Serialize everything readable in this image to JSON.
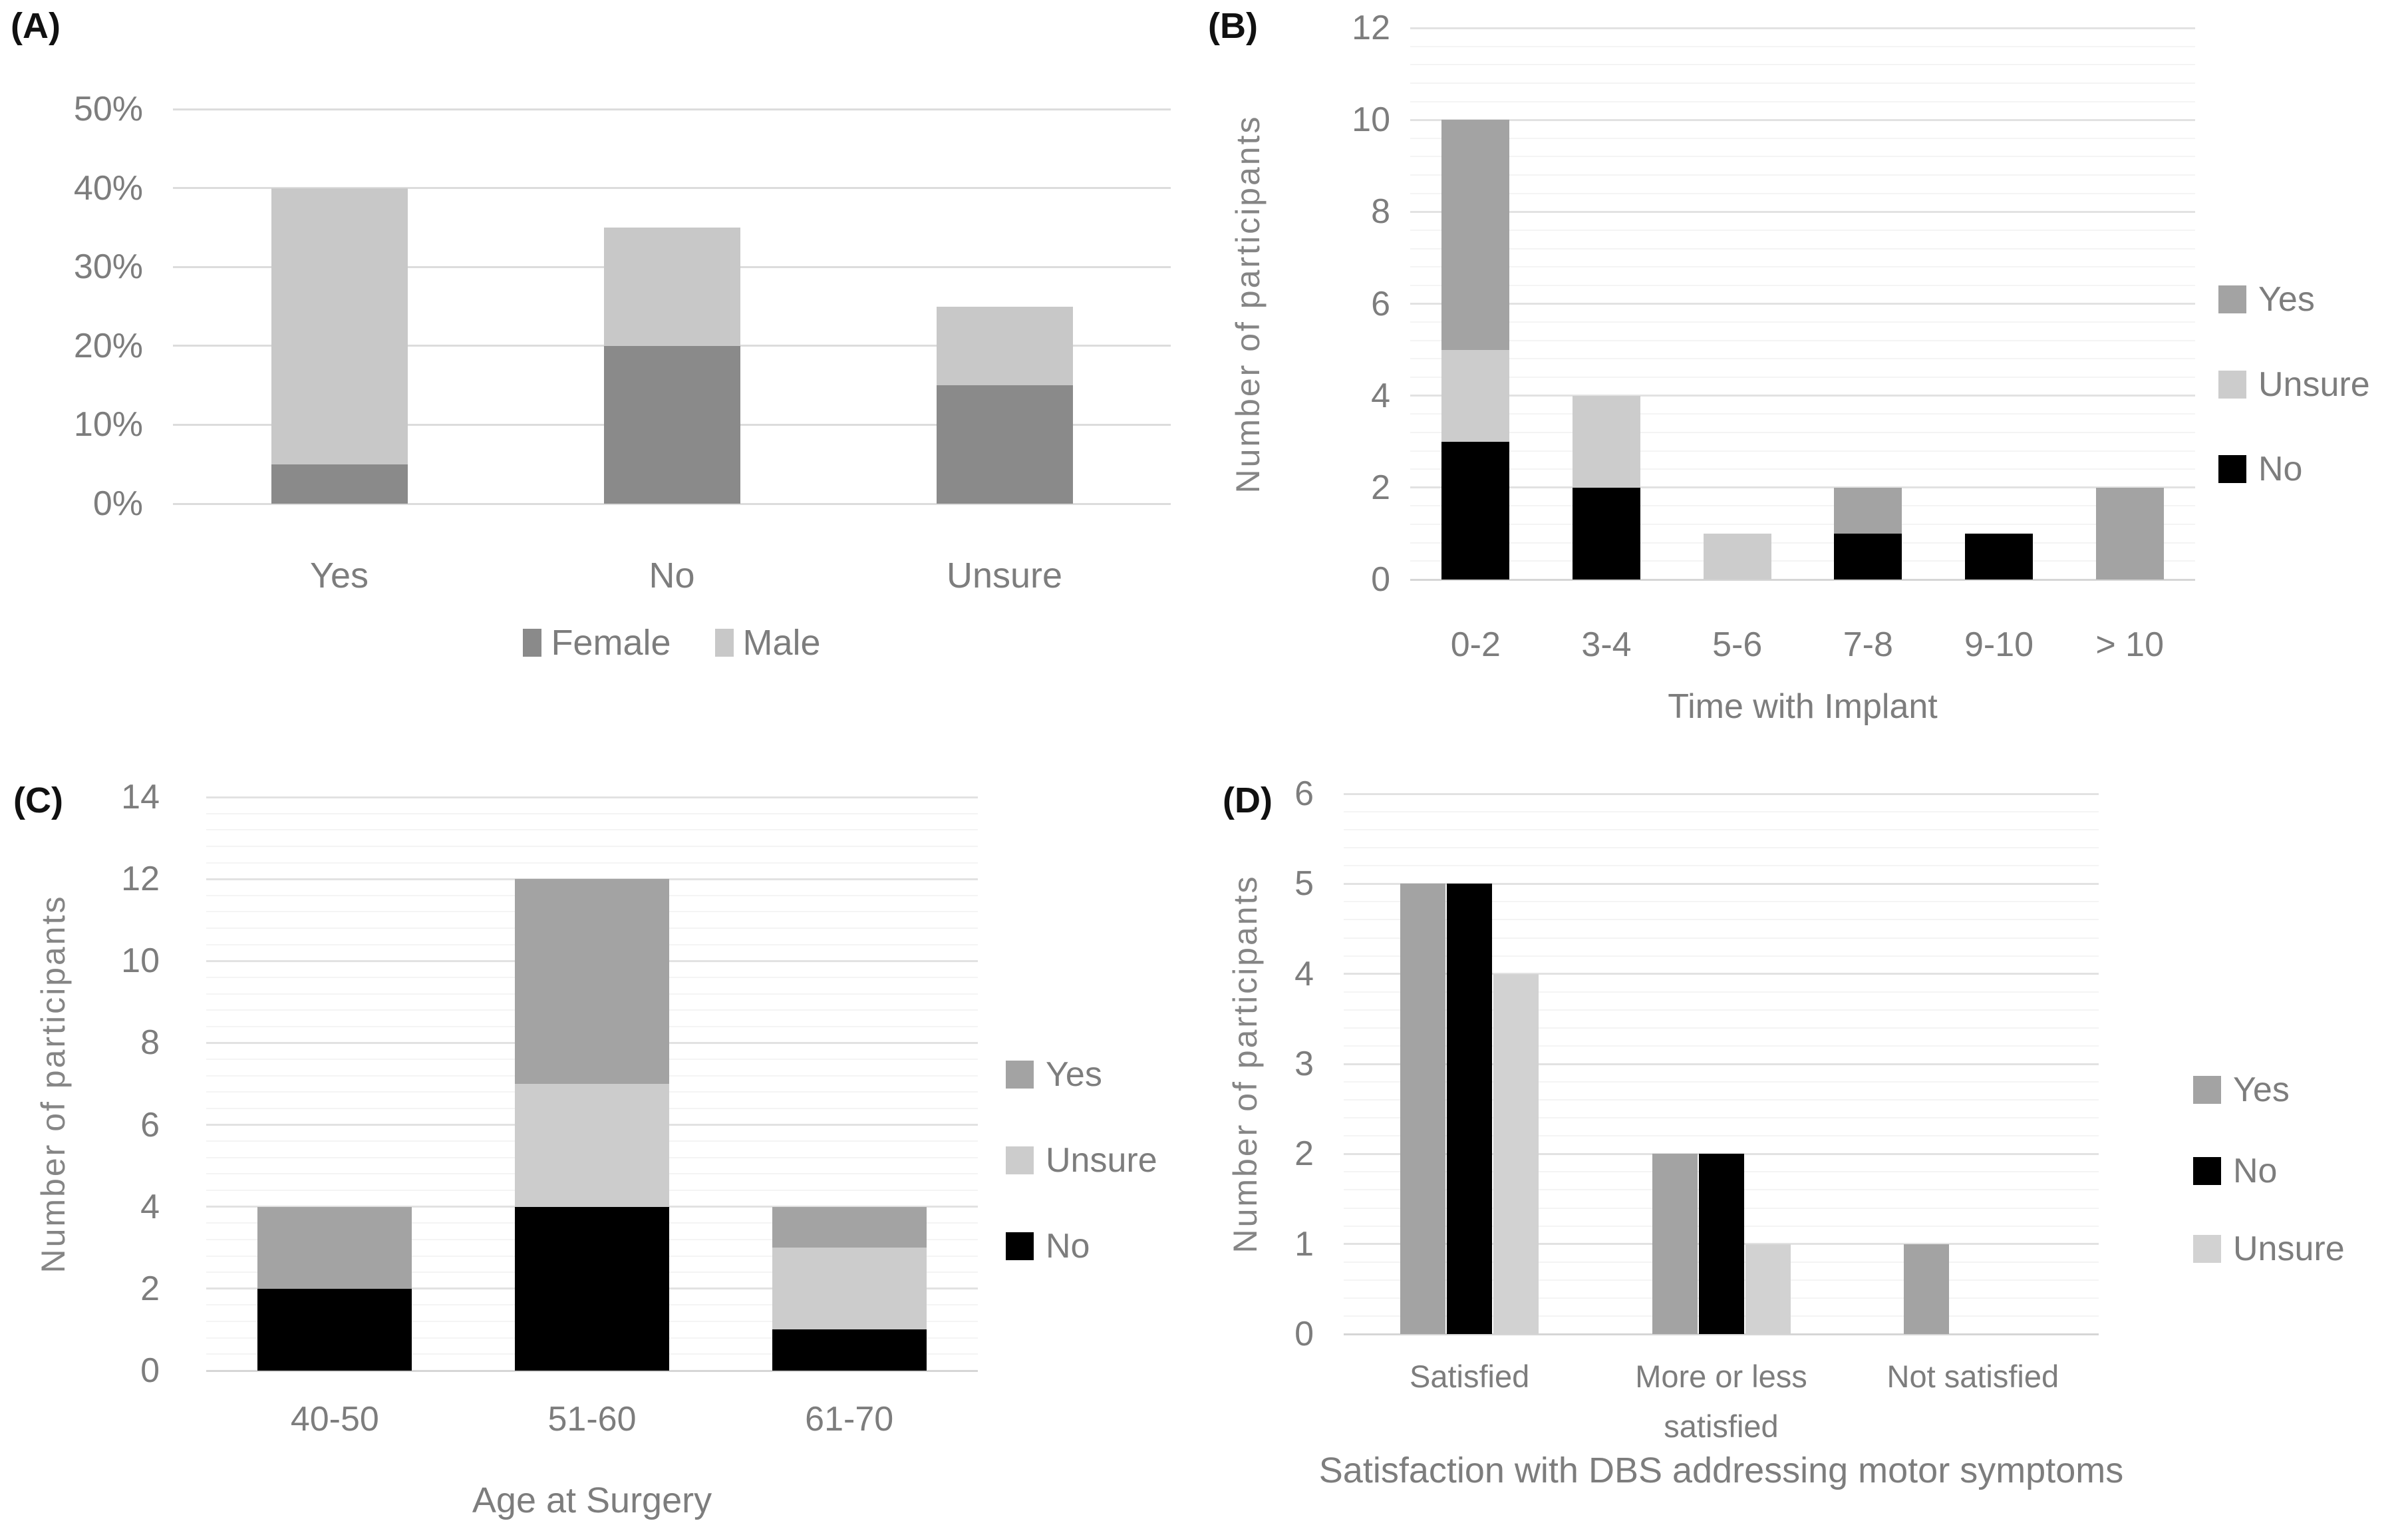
{
  "page": {
    "background": "#ffffff"
  },
  "chart_data": [
    {
      "panel_label": "(A)",
      "type": "bar",
      "stacked": true,
      "title": "",
      "xlabel": "",
      "ylabel": "",
      "categories": [
        "Yes",
        "No",
        "Unsure"
      ],
      "series": [
        {
          "name": "Female",
          "color": "#8a8a8a",
          "values": [
            5,
            20,
            15
          ]
        },
        {
          "name": "Male",
          "color": "#c8c8c8",
          "values": [
            35,
            15,
            10
          ]
        }
      ],
      "ylim": [
        0,
        50
      ],
      "ytick_step": 10,
      "ytick_labels": [
        "0%",
        "10%",
        "20%",
        "30%",
        "40%",
        "50%"
      ],
      "grid": "major-horizontal",
      "legend": {
        "position": "bottom",
        "entries": [
          {
            "label": "Female",
            "color": "#8a8a8a"
          },
          {
            "label": "Male",
            "color": "#c8c8c8"
          }
        ]
      }
    },
    {
      "panel_label": "(B)",
      "type": "bar",
      "stacked": true,
      "title": "",
      "xlabel": "Time with Implant",
      "ylabel": "Number of participants",
      "categories": [
        "0-2",
        "3-4",
        "5-6",
        "7-8",
        "9-10",
        "> 10"
      ],
      "series": [
        {
          "name": "No",
          "color": "#000000",
          "values": [
            3,
            2,
            0,
            1,
            1,
            0
          ]
        },
        {
          "name": "Unsure",
          "color": "#cccccc",
          "values": [
            2,
            2,
            1,
            0,
            0,
            0
          ]
        },
        {
          "name": "Yes",
          "color": "#a3a3a3",
          "values": [
            5,
            0,
            0,
            1,
            0,
            2
          ]
        }
      ],
      "ylim": [
        0,
        12
      ],
      "ytick_step": 2,
      "minor_step": 0.4,
      "ytick_labels": [
        "0",
        "2",
        "4",
        "6",
        "8",
        "10",
        "12"
      ],
      "grid": "major-and-minor-horizontal",
      "legend": {
        "position": "right",
        "entries": [
          {
            "label": "Yes",
            "color": "#a3a3a3"
          },
          {
            "label": "Unsure",
            "color": "#cccccc"
          },
          {
            "label": "No",
            "color": "#000000"
          }
        ]
      }
    },
    {
      "panel_label": "(C)",
      "type": "bar",
      "stacked": true,
      "title": "",
      "xlabel": "Age at Surgery",
      "ylabel": "Number of participants",
      "categories": [
        "40-50",
        "51-60",
        "61-70"
      ],
      "series": [
        {
          "name": "No",
          "color": "#000000",
          "values": [
            2,
            4,
            1
          ]
        },
        {
          "name": "Unsure",
          "color": "#cccccc",
          "values": [
            0,
            3,
            2
          ]
        },
        {
          "name": "Yes",
          "color": "#a3a3a3",
          "values": [
            2,
            5,
            1
          ]
        }
      ],
      "ylim": [
        0,
        14
      ],
      "ytick_step": 2,
      "minor_step": 0.4,
      "ytick_labels": [
        "0",
        "2",
        "4",
        "6",
        "8",
        "10",
        "12",
        "14"
      ],
      "grid": "major-and-minor-horizontal",
      "legend": {
        "position": "right",
        "entries": [
          {
            "label": "Yes",
            "color": "#a3a3a3"
          },
          {
            "label": "Unsure",
            "color": "#cccccc"
          },
          {
            "label": "No",
            "color": "#000000"
          }
        ]
      }
    },
    {
      "panel_label": "(D)",
      "type": "bar",
      "stacked": false,
      "title": "",
      "xlabel": "Satisfaction with DBS addressing motor symptoms",
      "ylabel": "Number of participants",
      "categories": [
        "Satisfied",
        "More or less satisfied",
        "Not satisfied"
      ],
      "series": [
        {
          "name": "Yes",
          "color": "#a3a3a3",
          "values": [
            5,
            2,
            1
          ]
        },
        {
          "name": "No",
          "color": "#000000",
          "values": [
            5,
            2,
            0
          ]
        },
        {
          "name": "Unsure",
          "color": "#d2d2d2",
          "values": [
            4,
            1,
            0
          ]
        }
      ],
      "ylim": [
        0,
        6
      ],
      "ytick_step": 1,
      "minor_step": 0.2,
      "ytick_labels": [
        "0",
        "1",
        "2",
        "3",
        "4",
        "5",
        "6"
      ],
      "grid": "major-and-minor-horizontal",
      "legend": {
        "position": "right",
        "entries": [
          {
            "label": "Yes",
            "color": "#a3a3a3"
          },
          {
            "label": "No",
            "color": "#000000"
          },
          {
            "label": "Unsure",
            "color": "#d2d2d2"
          }
        ]
      }
    }
  ]
}
